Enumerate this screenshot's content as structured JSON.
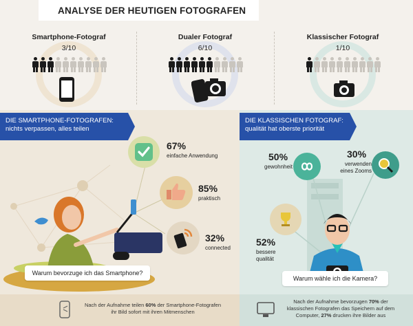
{
  "title": "ANALYSE DER HEUTIGEN FOTOGRAFEN",
  "types": [
    {
      "name": "Smartphone-Fotograf",
      "ratio": "3/10",
      "highlight": 3,
      "ring": "#efe4d2",
      "device": "smartphone"
    },
    {
      "name": "Dualer Fotograf",
      "ratio": "6/10",
      "highlight": 6,
      "ring": "#dfe2ec",
      "device": "both"
    },
    {
      "name": "Klassischer Fotograf",
      "ratio": "1/10",
      "highlight": 1,
      "ring": "#d9e8e3",
      "device": "camera"
    }
  ],
  "smartphone_section": {
    "banner_title": "DIE SMARTPHONE-FOTOGRAFEN:",
    "banner_subtitle": "nichts verpassen, alles teilen",
    "stats": [
      {
        "pct": "67%",
        "label": "einfache Anwendung"
      },
      {
        "pct": "85%",
        "label": "praktisch"
      },
      {
        "pct": "32%",
        "label": "connected"
      }
    ],
    "question": "Warum bevorzuge ich das Smartphone?"
  },
  "camera_section": {
    "banner_title": "DIE KLASSISCHEN FOTOGRAF:",
    "banner_subtitle": "qualität hat oberste priorität",
    "stats": [
      {
        "pct": "50%",
        "label": "gewohnheit"
      },
      {
        "pct": "30%",
        "label": "verwenden eines Zooms"
      },
      {
        "pct": "52%",
        "label": "bessere qualität"
      }
    ],
    "question": "Warum wähle ich die Kamera?"
  },
  "footer": {
    "left_a": "Nach der Aufnahme teilen ",
    "left_b": "60%",
    "left_c": " der Smartphone-Fotografen",
    "left_d": "ihr Bild sofort mit ihren Mitmenschen",
    "right_a": "Nach der Aufnahme bevorzugen ",
    "right_b": "70%",
    "right_c": " der",
    "right_d": "klassischen Fotografen das Speichern auf dem",
    "right_e": "Computer, ",
    "right_f": "27%",
    "right_g": " drucken ihre Bilder aus"
  },
  "colors": {
    "banner": "#2751a8",
    "person_active": "#1b1b1b",
    "person_inactive": "#c9c5be",
    "green": "#62c08a",
    "teal": "#4bb39a"
  }
}
